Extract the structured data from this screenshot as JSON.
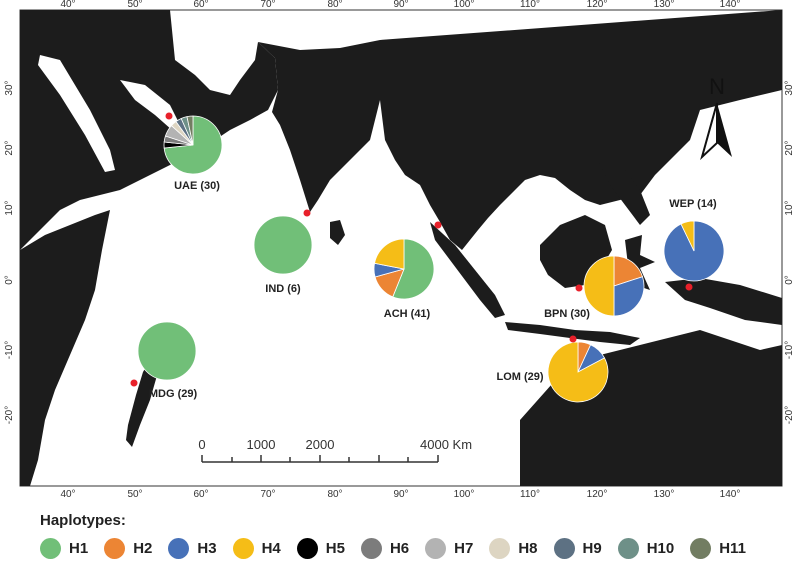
{
  "map": {
    "lon_ticks": [
      "40°",
      "50°",
      "60°",
      "70°",
      "80°",
      "90°",
      "100°",
      "110°",
      "120°",
      "130°",
      "140°"
    ],
    "lat_ticks": [
      "30°",
      "20°",
      "10°",
      "0°",
      "-10°",
      "-20°"
    ],
    "north_label": "N",
    "scale_bar": {
      "labels": [
        "0",
        "1000",
        "2000",
        "4000 Km"
      ]
    },
    "sites": [
      {
        "id": "UAE",
        "label": "UAE (30)",
        "n": 30,
        "values": [
          22,
          0,
          0,
          0,
          1,
          1,
          2,
          1,
          1,
          1,
          1
        ]
      },
      {
        "id": "IND",
        "label": "IND (6)",
        "n": 6,
        "values": [
          6,
          0,
          0,
          0,
          0,
          0,
          0,
          0,
          0,
          0,
          0
        ]
      },
      {
        "id": "ACH",
        "label": "ACH (41)",
        "n": 41,
        "values": [
          23,
          6,
          3,
          9,
          0,
          0,
          0,
          0,
          0,
          0,
          0
        ]
      },
      {
        "id": "WEP",
        "label": "WEP (14)",
        "n": 14,
        "values": [
          0,
          0,
          13,
          1,
          0,
          0,
          0,
          0,
          0,
          0,
          0
        ]
      },
      {
        "id": "BPN",
        "label": "BPN (30)",
        "n": 30,
        "values": [
          0,
          6,
          9,
          15,
          0,
          0,
          0,
          0,
          0,
          0,
          0
        ]
      },
      {
        "id": "LOM",
        "label": "LOM (29)",
        "n": 29,
        "values": [
          0,
          2,
          3,
          24,
          0,
          0,
          0,
          0,
          0,
          0,
          0
        ]
      },
      {
        "id": "MDG",
        "label": "MDG (29)",
        "n": 29,
        "values": [
          29,
          0,
          0,
          0,
          0,
          0,
          0,
          0,
          0,
          0,
          0
        ]
      }
    ]
  },
  "legend": {
    "title": "Haplotypes:",
    "items": [
      {
        "label": "H1",
        "color": "#71bf78"
      },
      {
        "label": "H2",
        "color": "#ec8534"
      },
      {
        "label": "H3",
        "color": "#4771b8"
      },
      {
        "label": "H4",
        "color": "#f5bd17"
      },
      {
        "label": "H5",
        "color": "#000000"
      },
      {
        "label": "H6",
        "color": "#7c7c7c"
      },
      {
        "label": "H7",
        "color": "#b3b3b3"
      },
      {
        "label": "H8",
        "color": "#ddd5c2"
      },
      {
        "label": "H9",
        "color": "#5d7183"
      },
      {
        "label": "H10",
        "color": "#6e9088"
      },
      {
        "label": "H11",
        "color": "#727d62"
      }
    ]
  }
}
